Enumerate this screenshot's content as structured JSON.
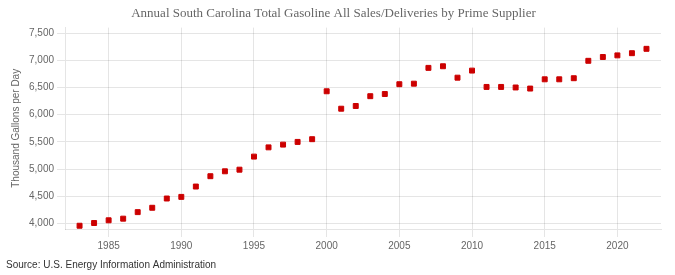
{
  "chart_data": {
    "type": "scatter",
    "title": "Annual South Carolina Total Gasoline All Sales/Deliveries by Prime Supplier",
    "ylabel": "Thousand Gallons per Day",
    "annotations": [
      "Source: U.S. Energy Information Administration"
    ],
    "x": [
      1983,
      1984,
      1985,
      1986,
      1987,
      1988,
      1989,
      1990,
      1991,
      1992,
      1993,
      1994,
      1995,
      1996,
      1997,
      1998,
      1999,
      2000,
      2001,
      2002,
      2003,
      2004,
      2005,
      2006,
      2007,
      2008,
      2009,
      2010,
      2011,
      2012,
      2013,
      2014,
      2015,
      2016,
      2017,
      2018,
      2019,
      2020,
      2021,
      2022
    ],
    "values": [
      3960,
      4010,
      4060,
      4090,
      4210,
      4290,
      4460,
      4490,
      4680,
      4870,
      4960,
      4990,
      5230,
      5400,
      5450,
      5500,
      5550,
      6430,
      6110,
      6160,
      6340,
      6380,
      6560,
      6570,
      6860,
      6890,
      6680,
      6810,
      6510,
      6510,
      6500,
      6480,
      6650,
      6650,
      6670,
      6990,
      7060,
      7090,
      7130,
      7210
    ],
    "color": "#cc0000",
    "marker": "square",
    "grid": true,
    "xlim": [
      1982,
      2023
    ],
    "xticks": [
      1985,
      1990,
      1995,
      2000,
      2005,
      2010,
      2015,
      2020
    ],
    "ylim": [
      3900,
      7600
    ],
    "yticks": [
      {
        "value": 4000,
        "label": "4,000"
      },
      {
        "value": 4500,
        "label": "4,500"
      },
      {
        "value": 5000,
        "label": "5,000"
      },
      {
        "value": 5500,
        "label": "5,500"
      },
      {
        "value": 6000,
        "label": "6,000"
      },
      {
        "value": 6500,
        "label": "6,500"
      },
      {
        "value": 7000,
        "label": "7,000"
      },
      {
        "value": 7500,
        "label": "7,500"
      }
    ]
  }
}
